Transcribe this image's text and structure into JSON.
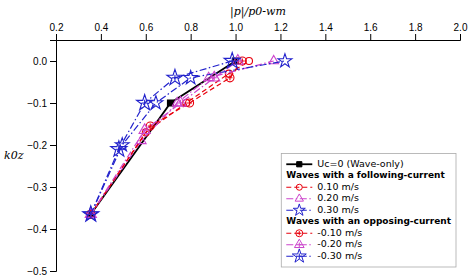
{
  "chart_data": {
    "type": "line",
    "xlabel": "|p|/p0-wm",
    "ylabel": "k0z",
    "xlim": [
      0.2,
      2.0
    ],
    "ylim": [
      -0.5,
      0.05
    ],
    "xticks": [
      0.2,
      0.4,
      0.6,
      0.8,
      {
        "value": 1.0,
        "label": "1.0"
      },
      1.2,
      1.4,
      1.6,
      1.8,
      {
        "value": 2.0,
        "label": "2.0"
      }
    ],
    "yticks": [
      {
        "value": 0.0,
        "label": "0.0"
      },
      {
        "value": -0.1,
        "label": "−0.1"
      },
      {
        "value": -0.2,
        "label": "−0.2"
      },
      {
        "value": -0.3,
        "label": "−0.3"
      },
      {
        "value": -0.4,
        "label": "−0.4"
      },
      {
        "value": -0.5,
        "label": "−0.5"
      }
    ],
    "grid": false,
    "legend": "lower right",
    "series": [
      {
        "name": "Uc=0 (Wave-only)",
        "color": "#000000",
        "marker": "square",
        "line_style": "solid",
        "x": [
          0.355,
          0.71,
          1.0
        ],
        "values": [
          -0.365,
          -0.1,
          0.0
        ]
      },
      {
        "name": "0.10 m/s",
        "group": "Waves with a following-current",
        "color": "#e8000d",
        "marker": "circle-open",
        "line_style": "dashed",
        "x": [
          0.355,
          0.6,
          0.78,
          0.97,
          1.06
        ],
        "values": [
          -0.365,
          -0.17,
          -0.1,
          -0.03,
          0.0
        ]
      },
      {
        "name": "0.20 m/s",
        "group": "Waves with a following-current",
        "color": "#cc44cc",
        "marker": "triangle-open",
        "line_style": "dashdot",
        "x": [
          0.355,
          0.58,
          0.74,
          0.88,
          1.17
        ],
        "values": [
          -0.365,
          -0.19,
          -0.1,
          -0.04,
          0.0
        ]
      },
      {
        "name": "0.30 m/s",
        "group": "Waves with a following-current",
        "color": "#2222cc",
        "marker": "star-open",
        "line_style": "dashdot",
        "x": [
          0.355,
          0.495,
          0.645,
          0.8,
          1.22
        ],
        "values": [
          -0.365,
          -0.2,
          -0.1,
          -0.04,
          0.0
        ]
      },
      {
        "name": "-0.10 m/s",
        "group": "Waves with an opposing-current",
        "color": "#e8000d",
        "marker": "circle-plus",
        "line_style": "dashed",
        "x": [
          0.355,
          0.62,
          0.795,
          0.975,
          1.03
        ],
        "values": [
          -0.365,
          -0.155,
          -0.1,
          -0.04,
          0.0
        ]
      },
      {
        "name": "-0.20 m/s",
        "group": "Waves with an opposing-current",
        "color": "#cc44cc",
        "marker": "triangle-plus",
        "line_style": "dashdot",
        "x": [
          0.355,
          0.595,
          0.755,
          0.905,
          1.01
        ],
        "values": [
          -0.365,
          -0.165,
          -0.1,
          -0.04,
          0.0
        ]
      },
      {
        "name": "-0.30 m/s",
        "group": "Waves with an opposing-current",
        "color": "#2222cc",
        "marker": "star-plus",
        "line_style": "dashdot",
        "x": [
          0.355,
          0.48,
          0.595,
          0.73,
          0.985
        ],
        "values": [
          -0.365,
          -0.21,
          -0.1,
          -0.04,
          0.0
        ]
      }
    ]
  }
}
